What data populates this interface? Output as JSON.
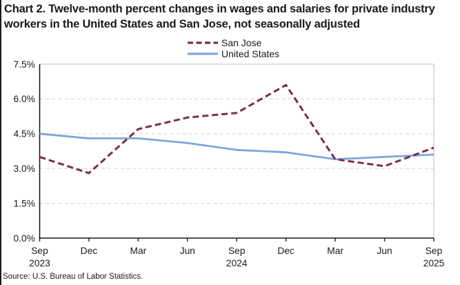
{
  "title": "Chart 2. Twelve-month percent changes in wages and salaries for private industry workers in the United States and San Jose, not seasonally adjusted",
  "source": "Source: U.S. Bureau of Labor Statistics.",
  "legend": {
    "items": [
      {
        "label": "San Jose",
        "color": "#7B2B50",
        "style": "dashed"
      },
      {
        "label": "United States",
        "color": "#7CA5DC",
        "style": "solid"
      }
    ]
  },
  "colors": {
    "san_jose": "#7B2B50",
    "united_states": "#7CA5DC",
    "gridline": "#D9D9D9",
    "plot_border": "#C9C9C9",
    "axis": "#1a1a1a"
  },
  "chart_data": {
    "type": "line",
    "title": "Chart 2. Twelve-month percent changes in wages and salaries for private industry workers in the United States and San Jose, not seasonally adjusted",
    "xlabel": "",
    "ylabel": "",
    "x": [
      "Sep 2023",
      "Dec 2023",
      "Mar 2024",
      "Jun 2024",
      "Sep 2024",
      "Dec 2024",
      "Mar 2025",
      "Jun 2025",
      "Sep 2025"
    ],
    "x_tick_labels": [
      "Sep",
      "Dec",
      "Mar",
      "Jun",
      "Sep",
      "Dec",
      "Mar",
      "Jun",
      "Sep"
    ],
    "x_tick_years": [
      "2023",
      "",
      "",
      "",
      "2024",
      "",
      "",
      "",
      "2025"
    ],
    "y_tick_labels": [
      "0.0%",
      "1.5%",
      "3.0%",
      "4.5%",
      "6.0%",
      "7.5%"
    ],
    "y_tick_values": [
      0,
      1.5,
      3.0,
      4.5,
      6.0,
      7.5
    ],
    "ylim": [
      0,
      7.5
    ],
    "grid": "horizontal-dashed",
    "legend_position": "top-center",
    "series": [
      {
        "name": "United States",
        "color": "#7CA5DC",
        "dash": "",
        "width": 2.8,
        "values": [
          4.5,
          4.3,
          4.3,
          4.1,
          3.8,
          3.7,
          3.4,
          3.5,
          3.6
        ]
      },
      {
        "name": "San Jose",
        "color": "#7B2B50",
        "dash": "9 5",
        "width": 3,
        "values": [
          3.5,
          2.8,
          4.7,
          5.2,
          5.4,
          6.6,
          3.4,
          3.1,
          3.9
        ]
      }
    ]
  }
}
